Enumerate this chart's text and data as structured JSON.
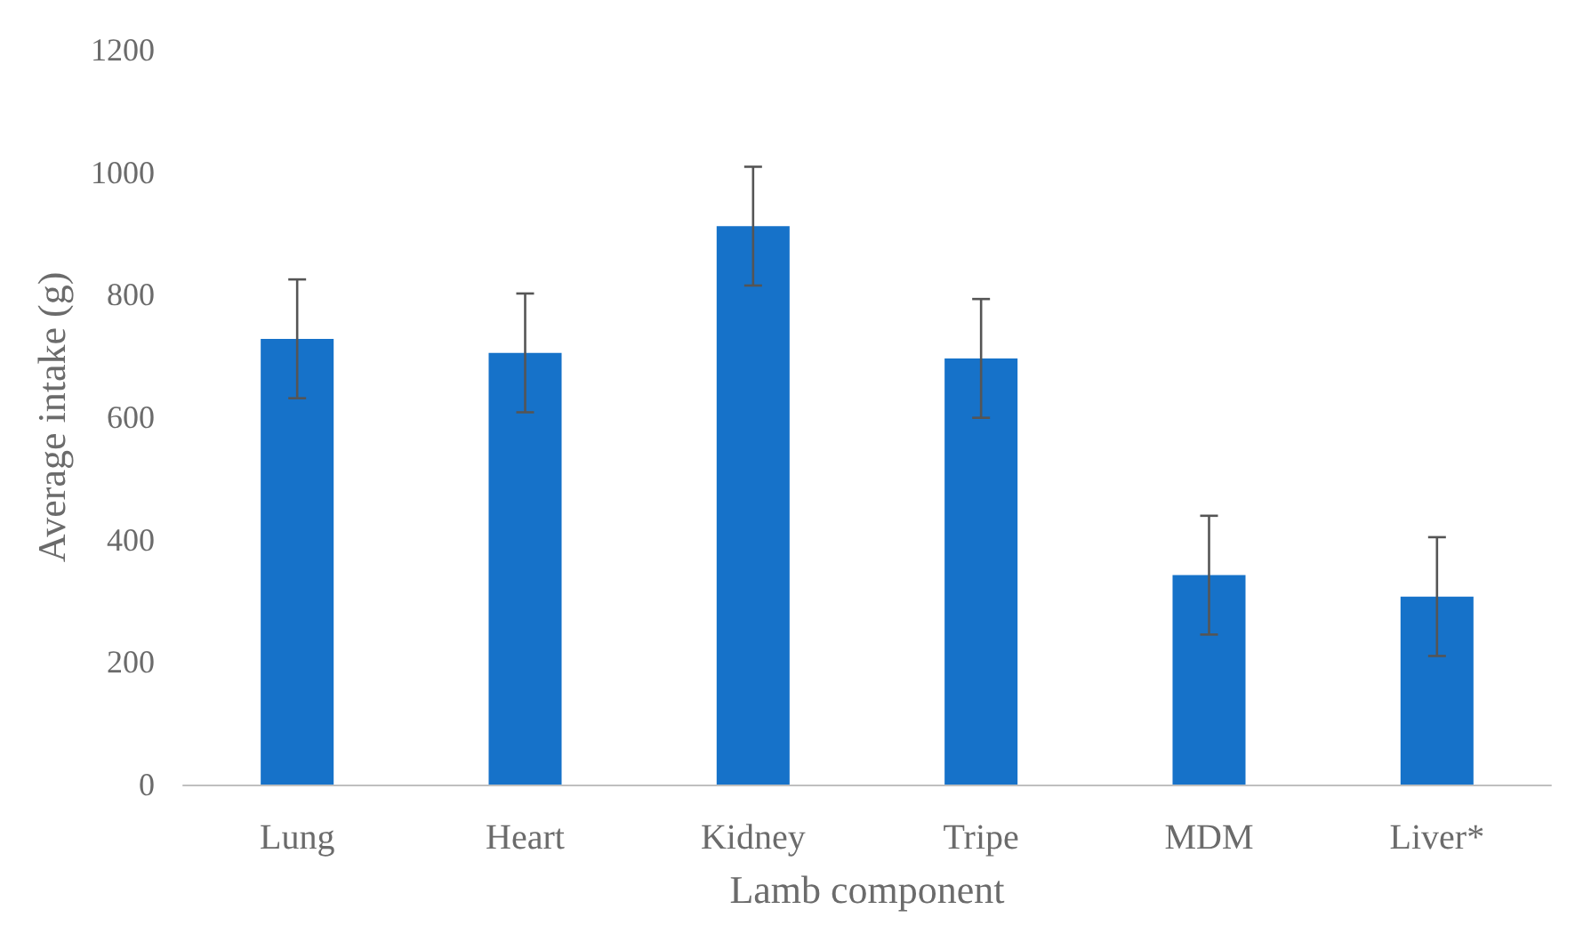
{
  "chart_data": {
    "type": "bar",
    "xlabel": "Lamb component",
    "ylabel": "Average intake (g)",
    "categories": [
      "Lung",
      "Heart",
      "Kidney",
      "Tripe",
      "MDM",
      "Liver*"
    ],
    "values": [
      728,
      705,
      912,
      696,
      342,
      307
    ],
    "errors": [
      97,
      97,
      97,
      97,
      97,
      97
    ],
    "color": "#1672c9",
    "ylim": [
      0,
      1200
    ],
    "yticks": [
      0,
      200,
      400,
      600,
      800,
      1000,
      1200
    ],
    "grid": false
  }
}
